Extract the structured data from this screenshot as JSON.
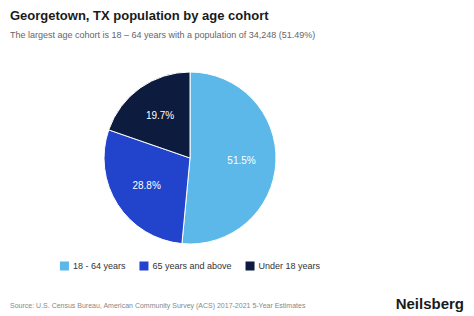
{
  "chart_data": {
    "type": "pie",
    "title": "Georgetown, TX population by age cohort",
    "subtitle": "The largest age cohort is 18 – 64 years with a population of 34,248 (51.49%)",
    "categories": [
      "18 - 64 years",
      "65 years and above",
      "Under 18 years"
    ],
    "values": [
      51.5,
      28.8,
      19.7
    ],
    "value_labels": [
      "51.5%",
      "28.8%",
      "19.7%"
    ],
    "colors": [
      "#5BB8E8",
      "#2244CC",
      "#0D1B3E"
    ],
    "data_labels": true,
    "legend": "bottom",
    "annotations": [
      "Source: U.S. Census Bureau, American Community Survey (ACS) 2017-2021 5-Year Estimates",
      "Neilsberg"
    ]
  }
}
